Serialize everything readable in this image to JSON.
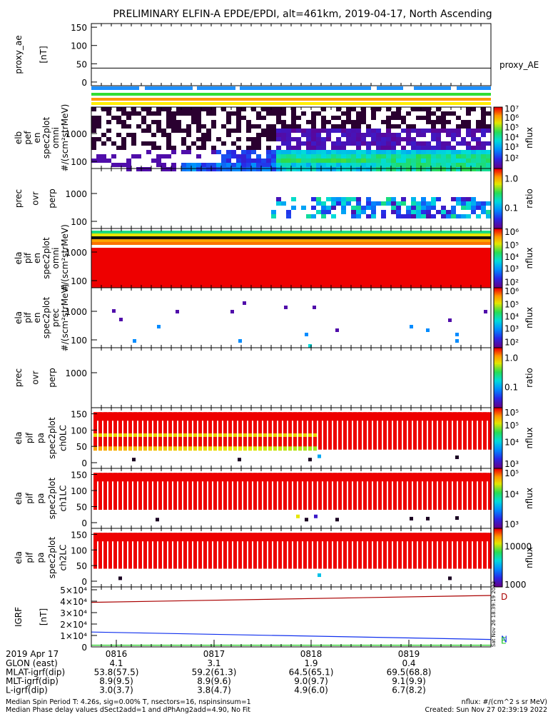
{
  "title": "PRELIMINARY ELFIN-A EPDE/EPDI, alt=461km, 2019-04-17, North Ascending",
  "colors": {
    "ae_line": "#000000",
    "bar_blue": "#1e90ff",
    "bar_green": "#33dd33",
    "bar_orange": "#ff9900",
    "bar_yellow": "#ffee00",
    "bar_red": "#ee0000",
    "spectrogram_hot": "#ee0000",
    "b_red": "#aa0000",
    "b_blue": "#1030ee",
    "b_green": "#22cc22"
  },
  "chart_data": [
    {
      "type": "line",
      "panel": "proxy_ae",
      "ylabel": [
        "proxy_ae",
        "[nT]"
      ],
      "yticks": [
        "150",
        "100",
        "50",
        "0"
      ],
      "ylim": [
        -10,
        160
      ],
      "series": [
        {
          "name": "proxy_AE",
          "values": [
            38,
            38
          ]
        }
      ]
    },
    {
      "type": "bar",
      "panel": "status-bars",
      "series": [
        "blue",
        "green",
        "orange",
        "yellow"
      ]
    },
    {
      "type": "heatmap",
      "panel": "elb-en-omni",
      "ylabel": [
        "elb",
        "pef",
        "en",
        "spec2plot",
        "omni",
        "#/(scm²strMeV)"
      ],
      "yticks": [
        "1000",
        "100"
      ],
      "colorbar": {
        "label": "nflux",
        "ticks": [
          "10⁷",
          "10⁶",
          "10⁵",
          "10⁴",
          "10³",
          "10²"
        ]
      }
    },
    {
      "type": "heatmap",
      "panel": "elb-prec-ovr-perp",
      "ylabel": [
        "prec",
        "ovr",
        "perp"
      ],
      "yticks": [
        "1000",
        "100"
      ],
      "colorbar": {
        "label": "ratio",
        "ticks": [
          "1.0",
          "0.1"
        ]
      }
    },
    {
      "type": "heatmap",
      "panel": "elb-pif-en-omni",
      "ylabel": [
        "ela",
        "pif",
        "en",
        "spec2plot",
        "omni",
        "#/(scm²strMeV)"
      ],
      "yticks": [
        "1000",
        "100"
      ],
      "colorbar": {
        "label": "nflux",
        "ticks": [
          "10⁶",
          "10⁵",
          "10⁴",
          "10³",
          "10²"
        ]
      }
    },
    {
      "type": "heatmap",
      "panel": "ela-pif-en-prec",
      "ylabel": [
        "ela",
        "pif",
        "en",
        "spec2plot",
        "prec",
        "#/(scm²strMeV)"
      ],
      "yticks": [
        "1000",
        "100"
      ],
      "colorbar": {
        "label": "nflux",
        "ticks": [
          "10⁶",
          "10⁵",
          "10⁴",
          "10³",
          "10²"
        ]
      }
    },
    {
      "type": "heatmap",
      "panel": "ela-pif-prec-ovr-perp",
      "ylabel": [
        "prec",
        "ovr",
        "perp"
      ],
      "yticks": [
        "1000"
      ],
      "colorbar": {
        "label": "ratio",
        "ticks": [
          "1.0",
          "0.1"
        ]
      }
    },
    {
      "type": "heatmap",
      "panel": "pa-ch0LC",
      "ylabel": [
        "ela",
        "pif",
        "pa",
        "spec2plot",
        "ch0LC"
      ],
      "yticks": [
        "150",
        "100",
        "50",
        "0"
      ],
      "colorbar": {
        "label": "nflux",
        "ticks": [
          "10⁵",
          "10⁵",
          "10⁴",
          "10³"
        ]
      }
    },
    {
      "type": "heatmap",
      "panel": "pa-ch1LC",
      "ylabel": [
        "ela",
        "pif",
        "pa",
        "spec2plot",
        "ch1LC"
      ],
      "yticks": [
        "150",
        "100",
        "50",
        "0"
      ],
      "colorbar": {
        "label": "nflux",
        "ticks": [
          "10⁵",
          "10⁴",
          "10³"
        ]
      }
    },
    {
      "type": "heatmap",
      "panel": "pa-ch2LC",
      "ylabel": [
        "ela",
        "pif",
        "pa",
        "spec2plot",
        "ch2LC"
      ],
      "yticks": [
        "150",
        "100",
        "50",
        "0"
      ],
      "colorbar": {
        "label": "nflux",
        "ticks": [
          "10000",
          "1000"
        ]
      }
    },
    {
      "type": "line",
      "panel": "igrf",
      "ylabel": [
        "IGRF",
        "[nT]"
      ],
      "yticks": [
        "5×10⁴",
        "4×10⁴",
        "3×10⁴",
        "2×10⁴",
        "1×10⁴",
        "0"
      ],
      "ylim": [
        0,
        50000
      ],
      "legend": [
        "D",
        "N",
        "E"
      ],
      "series": [
        {
          "name": "D",
          "values": [
            39000,
            45000
          ]
        },
        {
          "name": "N",
          "values": [
            13000,
            6500
          ]
        },
        {
          "name": "E",
          "values": [
            1500,
            1500
          ]
        }
      ]
    }
  ],
  "xaxis": {
    "date_label": "2019 Apr 17",
    "ticks": [
      "0816",
      "0817",
      "0818",
      "0819"
    ],
    "rows": [
      {
        "label": "GLON (east)",
        "values": [
          "4.1",
          "3.1",
          "1.9",
          "0.4"
        ]
      },
      {
        "label": "MLAT-igrf(dip)",
        "values": [
          "53.8(57.5)",
          "59.2(61.3)",
          "64.5(65.1)",
          "69.5(68.8)"
        ]
      },
      {
        "label": "MLT-igrf(dip)",
        "values": [
          "8.9(9.5)",
          "8.9(9.6)",
          "9.0(9.7)",
          "9.1(9.9)"
        ]
      },
      {
        "label": "L-igrf(dip)",
        "values": [
          "3.0(3.7)",
          "3.8(4.7)",
          "4.9(6.0)",
          "6.7(8.2)"
        ]
      }
    ]
  },
  "footer": {
    "line1": "Median Spin Period T: 4.26s, sig=0.00% T, nsectors=16, nspinsinsum=1",
    "line2": "Median Phase delay values dSect2add=1 and dPhAng2add=4.90, No Fit",
    "units": "nflux: #/(cm^2 s sr MeV)",
    "created": "Created: Sun Nov 27 02:39:19 2022",
    "side_stamp": "Sat Nov 26 18:39:19 2022"
  }
}
